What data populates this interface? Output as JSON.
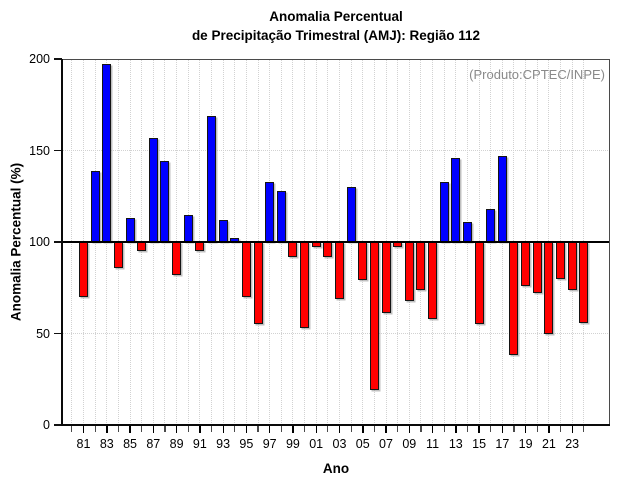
{
  "title": {
    "line1": "Anomalia Percentual",
    "line2": "de Precipitação Trimestral (AMJ): Região 112"
  },
  "annotation": "(Produto:CPTEC/INPE)",
  "chart_data": {
    "type": "bar",
    "title": "Anomalia Percentual de Precipitação Trimestral (AMJ): Região 112",
    "xlabel": "Ano",
    "ylabel": "Anomalia Percentual (%)",
    "baseline": 100,
    "ylim": [
      0,
      200
    ],
    "yticks": [
      0,
      50,
      100,
      150,
      200
    ],
    "ytick_labels": [
      "0",
      "50",
      "100",
      "150",
      "200"
    ],
    "x_years": [
      1981,
      1982,
      1983,
      1984,
      1985,
      1986,
      1987,
      1988,
      1989,
      1990,
      1991,
      1992,
      1993,
      1994,
      1995,
      1996,
      1997,
      1998,
      1999,
      2000,
      2001,
      2002,
      2003,
      2004,
      2005,
      2006,
      2007,
      2008,
      2009,
      2010,
      2011,
      2012,
      2013,
      2014,
      2015,
      2016,
      2017,
      2018,
      2019,
      2020,
      2021,
      2022,
      2023,
      2024
    ],
    "values": [
      70,
      139,
      197,
      86,
      113,
      95,
      157,
      144,
      82,
      115,
      95,
      169,
      112,
      102,
      70,
      55,
      133,
      128,
      92,
      53,
      97,
      92,
      69,
      130,
      79,
      19,
      61,
      97,
      68,
      74,
      58,
      133,
      146,
      111,
      55,
      118,
      147,
      38,
      76,
      72,
      50,
      80,
      74,
      56
    ],
    "xtick_label_years": [
      1981,
      1983,
      1985,
      1987,
      1989,
      1991,
      1993,
      1995,
      1997,
      1999,
      2001,
      2003,
      2005,
      2007,
      2009,
      2011,
      2013,
      2015,
      2017,
      2019,
      2021,
      2023
    ],
    "xtick_labels": [
      "81",
      "83",
      "85",
      "87",
      "89",
      "91",
      "93",
      "95",
      "97",
      "99",
      "01",
      "03",
      "05",
      "07",
      "09",
      "11",
      "13",
      "15",
      "17",
      "19",
      "21",
      "23"
    ],
    "grid": "dotted",
    "legend": null,
    "colors": {
      "above_baseline": "#0000ff",
      "below_baseline": "#ff0000",
      "bar_border": "#151515",
      "baseline_line": "#000000",
      "grid_line": "#d2d2d2",
      "frame": "#4a4a4a",
      "annotation_text": "#8a8a8a",
      "text": "#000000"
    }
  }
}
